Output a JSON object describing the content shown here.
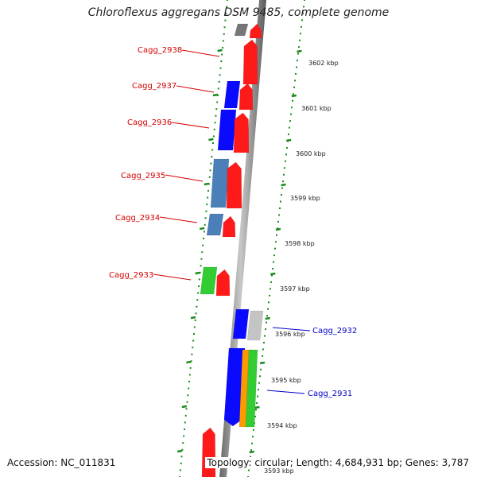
{
  "title": "Chloroflexus aggregans DSM 9485, complete genome",
  "footer": {
    "accession": "Accession: NC_011831",
    "topology": "Topology: circular; Length: 4,684,931 bp; Genes: 3,787"
  },
  "colors": {
    "backbone_dark": "#6e6e6e",
    "backbone_light": "#d8d8d8",
    "ruler_green": "#1a8a1a",
    "label_red": "#d40000",
    "label_blue": "#0000c8",
    "red": "#ff1a1a",
    "blue": "#0a0aff",
    "steel": "#4a7fb8",
    "green": "#33cc33",
    "gray": "#c4c4c4",
    "dark_gray": "#777777",
    "orange": "#ff9900"
  },
  "scale": {
    "ticks": [
      "3602 kbp",
      "3601 kbp",
      "3600 kbp",
      "3599 kbp",
      "3598 kbp",
      "3597 kbp",
      "3596 kbp",
      "3595 kbp",
      "3594 kbp",
      "3593 kbp"
    ]
  },
  "gene_labels": [
    {
      "text": "Cagg_2938",
      "color": "red"
    },
    {
      "text": "Cagg_2937",
      "color": "red"
    },
    {
      "text": "Cagg_2936",
      "color": "red"
    },
    {
      "text": "Cagg_2935",
      "color": "red"
    },
    {
      "text": "Cagg_2934",
      "color": "red"
    },
    {
      "text": "Cagg_2933",
      "color": "red"
    },
    {
      "text": "Cagg_2932",
      "color": "blue"
    },
    {
      "text": "Cagg_2931",
      "color": "blue"
    }
  ],
  "features": [
    {
      "lane": "in",
      "fill": "dark_gray",
      "shape": "box"
    },
    {
      "lane": "on",
      "fill": "red",
      "shape": "arrow"
    },
    {
      "lane": "on",
      "fill": "red",
      "shape": "arrow"
    },
    {
      "lane": "in",
      "fill": "blue",
      "shape": "box"
    },
    {
      "lane": "on",
      "fill": "red",
      "shape": "arrow"
    },
    {
      "lane": "in",
      "fill": "blue",
      "shape": "box"
    },
    {
      "lane": "on",
      "fill": "red",
      "shape": "arrow"
    },
    {
      "lane": "in",
      "fill": "steel",
      "shape": "box"
    },
    {
      "lane": "on",
      "fill": "red",
      "shape": "arrow"
    },
    {
      "lane": "in",
      "fill": "steel",
      "shape": "box"
    },
    {
      "lane": "on",
      "fill": "red",
      "shape": "arrow"
    },
    {
      "lane": "in",
      "fill": "green",
      "shape": "box"
    },
    {
      "lane": "on",
      "fill": "red",
      "shape": "arrow"
    },
    {
      "lane": "on",
      "fill": "blue",
      "shape": "box"
    },
    {
      "lane": "out",
      "fill": "gray",
      "shape": "box"
    },
    {
      "lane": "on",
      "fill": "blue",
      "shape": "arrow-down"
    },
    {
      "lane": "out",
      "fill": "orange",
      "shape": "box"
    },
    {
      "lane": "out2",
      "fill": "green",
      "shape": "box"
    },
    {
      "lane": "in",
      "fill": "red",
      "shape": "arrow"
    }
  ]
}
